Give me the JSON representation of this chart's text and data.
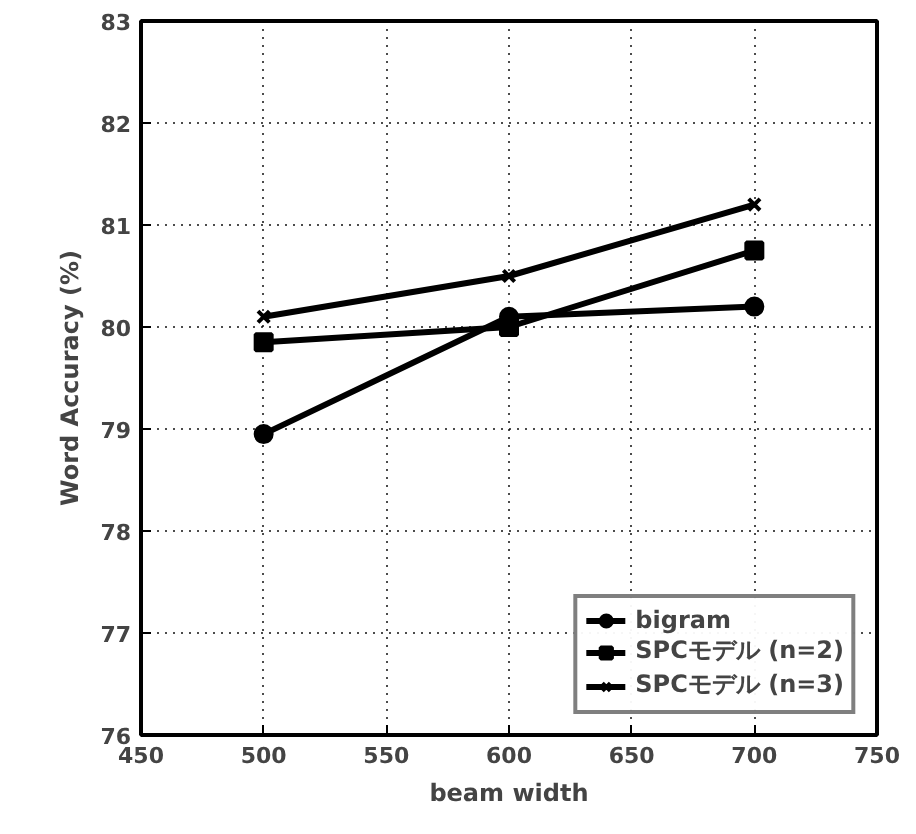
{
  "chart_data": {
    "type": "line",
    "xlabel": "beam width",
    "ylabel": "Word Accuracy (%)",
    "x": [
      500,
      600,
      700
    ],
    "series": [
      {
        "name": "bigram",
        "color": "#000000",
        "marker": "circle",
        "values": [
          78.95,
          80.1,
          80.2
        ]
      },
      {
        "name": "SPCモデル (n=2)",
        "color": "#000000",
        "marker": "square",
        "values": [
          79.85,
          80.0,
          80.75
        ]
      },
      {
        "name": "SPCモデル (n=3)",
        "color": "#000000",
        "marker": "cross",
        "values": [
          80.1,
          80.5,
          81.2
        ]
      }
    ],
    "xlim": [
      450,
      750
    ],
    "ylim": [
      76,
      83
    ],
    "xticks": [
      450,
      500,
      550,
      600,
      650,
      700,
      750
    ],
    "yticks": [
      76,
      77,
      78,
      79,
      80,
      81,
      82,
      83
    ],
    "grid": true,
    "legend": "bottom right",
    "line_style": "solid"
  }
}
